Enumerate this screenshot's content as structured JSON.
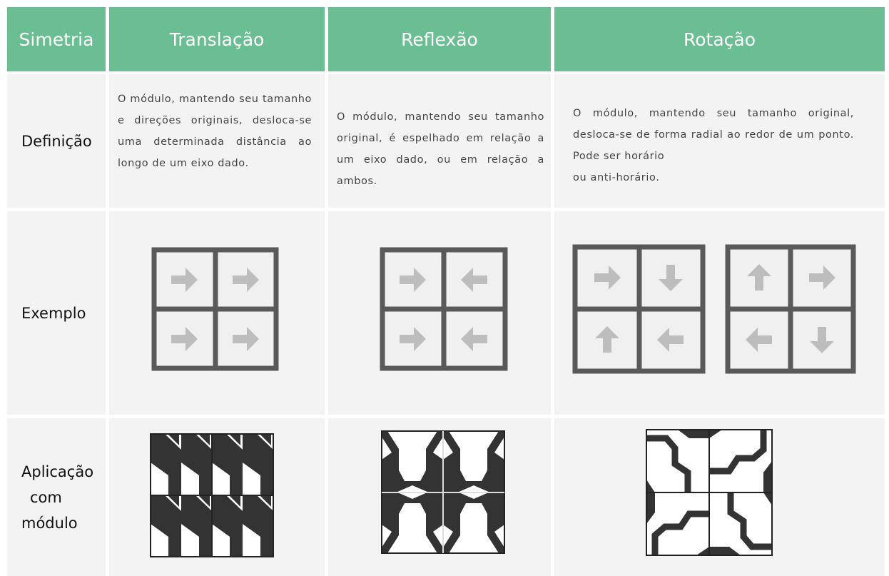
{
  "table": {
    "header": [
      "Simetria",
      "Translação",
      "Reflexão",
      "Rotação"
    ],
    "rows": [
      {
        "label": [
          "Definição"
        ],
        "cells": [
          "O módulo, mantendo seu tamanho e direções originais, desloca-se uma determinada distância ao longo de um eixo dado.",
          "O módulo, mantendo seu tamanho original, é espelhado em relação a um eixo dado, ou em relação a ambos.",
          "O módulo, mantendo seu tamanho original, desloca-se de forma radial ao redor de um ponto. Pode ser horário\nou anti-horário."
        ]
      },
      {
        "label": [
          "Exemplo"
        ]
      },
      {
        "label": [
          "Aplicação",
          "com",
          "módulo"
        ]
      }
    ]
  }
}
